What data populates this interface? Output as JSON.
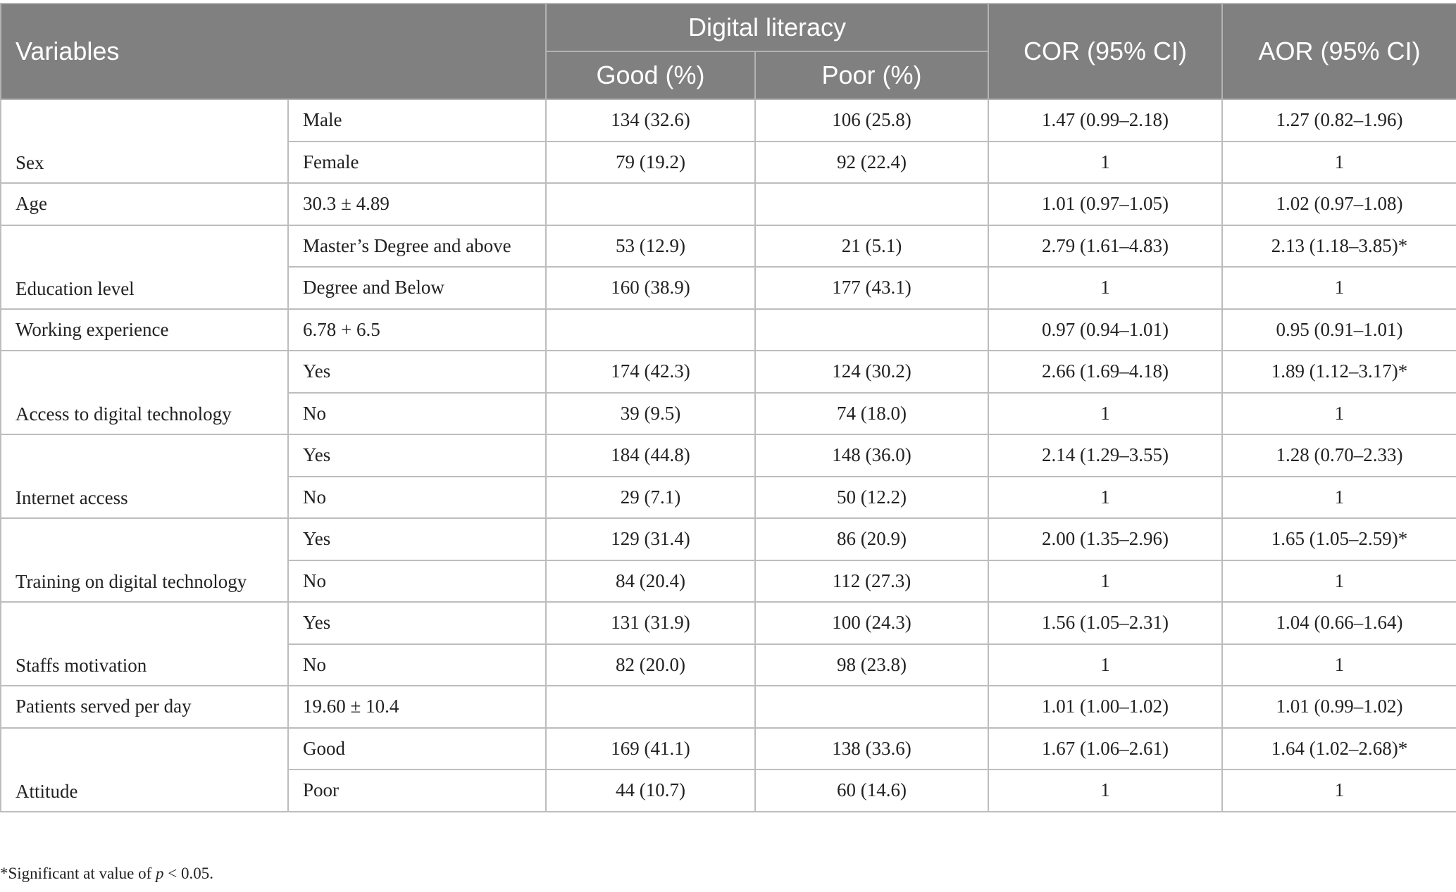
{
  "header": {
    "variables": "Variables",
    "digital_literacy": "Digital literacy",
    "good": "Good (%)",
    "poor": "Poor (%)",
    "cor": "COR (95% CI)",
    "aor": "AOR (95% CI)"
  },
  "rows": [
    {
      "variable": "Sex",
      "category": "Male",
      "good": "134 (32.6)",
      "poor": "106 (25.8)",
      "cor": "1.47 (0.99–2.18)",
      "aor": "1.27 (0.82–1.96)"
    },
    {
      "variable": "",
      "category": "Female",
      "good": "79 (19.2)",
      "poor": "92 (22.4)",
      "cor": "1",
      "aor": "1"
    },
    {
      "variable": "Age",
      "category": "30.3 ± 4.89",
      "good": "",
      "poor": "",
      "cor": "1.01 (0.97–1.05)",
      "aor": "1.02 (0.97–1.08)"
    },
    {
      "variable": "Education level",
      "category": "Master’s Degree and above",
      "good": "53 (12.9)",
      "poor": "21 (5.1)",
      "cor": "2.79 (1.61–4.83)",
      "aor": "2.13 (1.18–3.85)*"
    },
    {
      "variable": "",
      "category": "Degree and Below",
      "good": "160 (38.9)",
      "poor": "177 (43.1)",
      "cor": "1",
      "aor": "1"
    },
    {
      "variable": "Working experience",
      "category": "6.78 + 6.5",
      "good": "",
      "poor": "",
      "cor": "0.97 (0.94–1.01)",
      "aor": "0.95 (0.91–1.01)"
    },
    {
      "variable": "Access to digital technology",
      "category": "Yes",
      "good": "174 (42.3)",
      "poor": "124 (30.2)",
      "cor": "2.66 (1.69–4.18)",
      "aor": "1.89 (1.12–3.17)*"
    },
    {
      "variable": "",
      "category": "No",
      "good": "39 (9.5)",
      "poor": "74 (18.0)",
      "cor": "1",
      "aor": "1"
    },
    {
      "variable": "Internet access",
      "category": "Yes",
      "good": "184 (44.8)",
      "poor": "148 (36.0)",
      "cor": "2.14 (1.29–3.55)",
      "aor": "1.28 (0.70–2.33)"
    },
    {
      "variable": "",
      "category": "No",
      "good": "29 (7.1)",
      "poor": "50 (12.2)",
      "cor": "1",
      "aor": "1"
    },
    {
      "variable": "Training on digital technology",
      "category": "Yes",
      "good": "129 (31.4)",
      "poor": "86 (20.9)",
      "cor": "2.00 (1.35–2.96)",
      "aor": "1.65 (1.05–2.59)*"
    },
    {
      "variable": "",
      "category": "No",
      "good": "84 (20.4)",
      "poor": "112 (27.3)",
      "cor": "1",
      "aor": "1"
    },
    {
      "variable": "Staffs motivation",
      "category": "Yes",
      "good": "131 (31.9)",
      "poor": "100 (24.3)",
      "cor": "1.56 (1.05–2.31)",
      "aor": "1.04 (0.66–1.64)"
    },
    {
      "variable": "",
      "category": "No",
      "good": "82 (20.0)",
      "poor": "98 (23.8)",
      "cor": "1",
      "aor": "1"
    },
    {
      "variable": "Patients served per day",
      "category": "19.60  ± 10.4",
      "good": "",
      "poor": "",
      "cor": "1.01 (1.00–1.02)",
      "aor": "1.01 (0.99–1.02)"
    },
    {
      "variable": "Attitude",
      "category": "Good",
      "good": "169 (41.1)",
      "poor": "138 (33.6)",
      "cor": "1.67 (1.06–2.61)",
      "aor": "1.64 (1.02–2.68)*"
    },
    {
      "variable": "",
      "category": "Poor",
      "good": "44 (10.7)",
      "poor": "60 (14.6)",
      "cor": "1",
      "aor": "1"
    }
  ],
  "footnote": {
    "prefix": "*Significant at value of ",
    "p": "p",
    "suffix": " < 0.05."
  }
}
